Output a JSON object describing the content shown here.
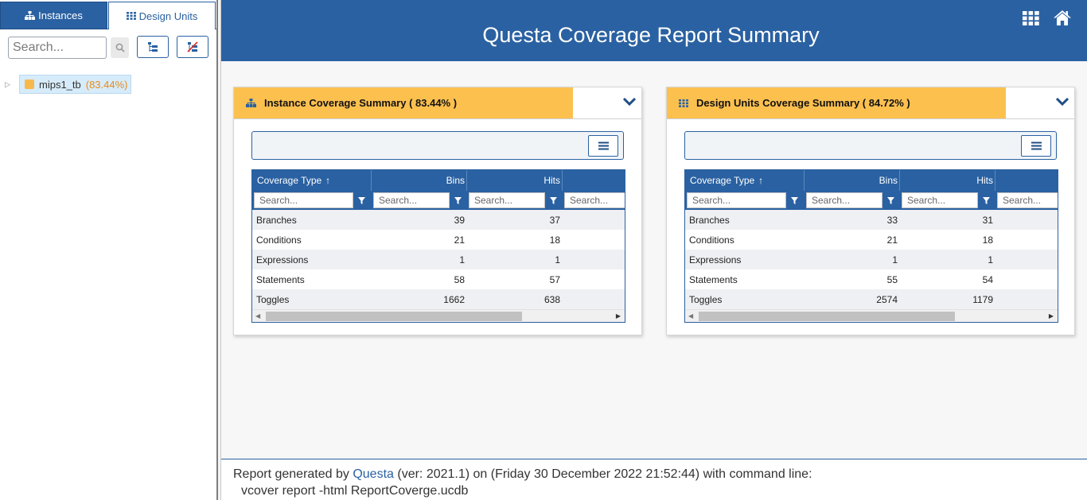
{
  "left_panel": {
    "tabs": [
      {
        "label": "Instances",
        "icon": "sitemap-icon",
        "active": true
      },
      {
        "label": "Design Units",
        "icon": "grid-icon",
        "active": false
      }
    ],
    "search": {
      "placeholder": "Search...",
      "value": ""
    },
    "tree": {
      "items": [
        {
          "name": "mips1_tb",
          "coverage": "(83.44%)",
          "expanded": false
        }
      ]
    }
  },
  "header": {
    "title": "Questa Coverage Report Summary",
    "icons": [
      "apps-icon",
      "home-icon"
    ]
  },
  "cards": [
    {
      "title": "Instance Coverage Summary ( 83.44% )",
      "icon": "sitemap-icon",
      "columns": [
        "Coverage Type",
        "Bins",
        "Hits"
      ],
      "sort_indicator": "↑",
      "filter_placeholder": "Search...",
      "rows": [
        {
          "type": "Branches",
          "bins": "39",
          "hits": "37"
        },
        {
          "type": "Conditions",
          "bins": "21",
          "hits": "18"
        },
        {
          "type": "Expressions",
          "bins": "1",
          "hits": "1"
        },
        {
          "type": "Statements",
          "bins": "58",
          "hits": "57"
        },
        {
          "type": "Toggles",
          "bins": "1662",
          "hits": "638"
        }
      ]
    },
    {
      "title": "Design Units Coverage Summary ( 84.72% )",
      "icon": "grid-icon",
      "columns": [
        "Coverage Type",
        "Bins",
        "Hits"
      ],
      "sort_indicator": "↑",
      "filter_placeholder": "Search...",
      "rows": [
        {
          "type": "Branches",
          "bins": "33",
          "hits": "31"
        },
        {
          "type": "Conditions",
          "bins": "21",
          "hits": "18"
        },
        {
          "type": "Expressions",
          "bins": "1",
          "hits": "1"
        },
        {
          "type": "Statements",
          "bins": "55",
          "hits": "54"
        },
        {
          "type": "Toggles",
          "bins": "2574",
          "hits": "1179"
        }
      ]
    }
  ],
  "footer": {
    "prefix": "Report generated by ",
    "tool": "Questa",
    "details": " (ver: 2021.1) on (Friday 30 December 2022 21:52:44) with command line:",
    "command": "vcover report -html ReportCoverge.ucdb"
  },
  "colors": {
    "brand_blue": "#2a61a2",
    "card_header": "#fcc04f",
    "coverage_highlight": "#e88a1a"
  }
}
